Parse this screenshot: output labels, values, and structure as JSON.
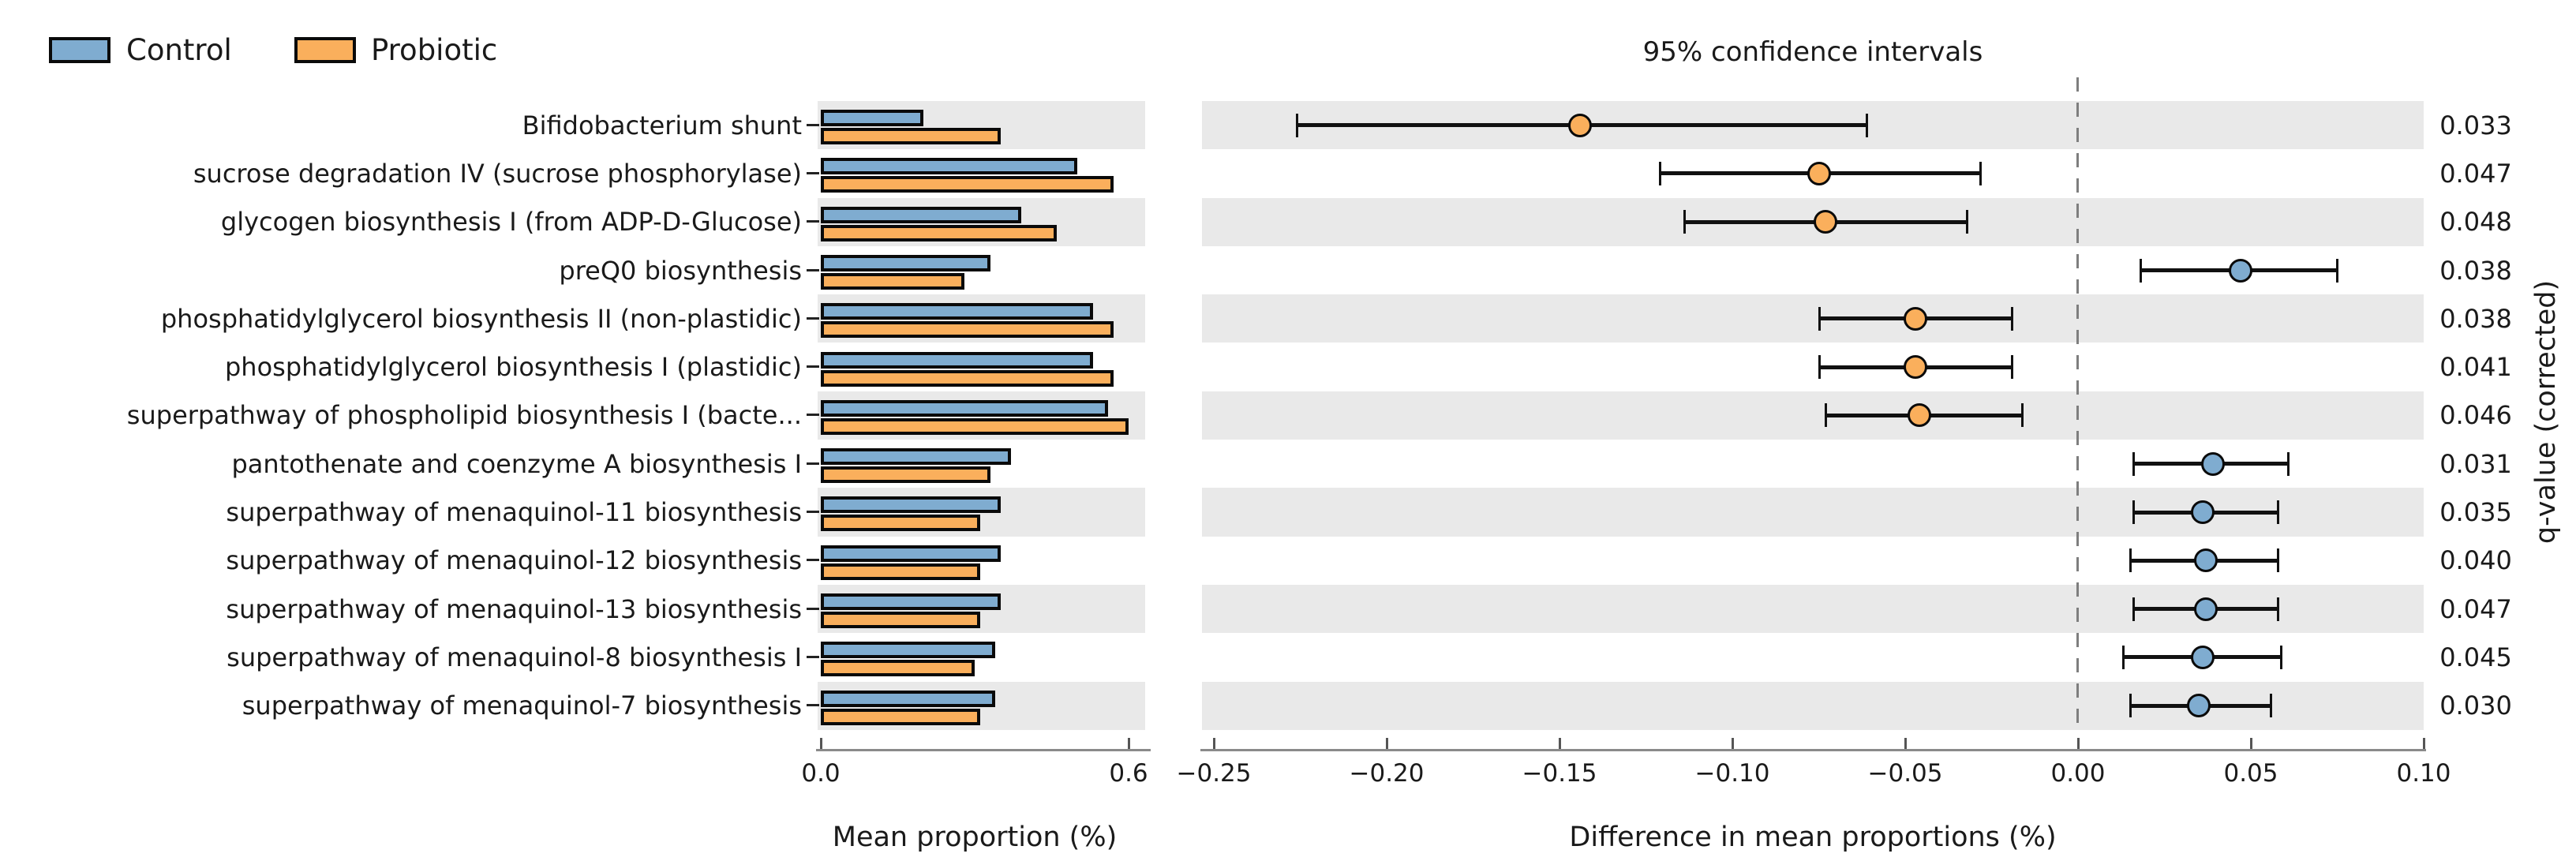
{
  "legend": {
    "items": [
      {
        "label": "Control",
        "color": "#7FACD0"
      },
      {
        "label": "Probiotic",
        "color": "#FAAF5C"
      }
    ]
  },
  "right_panel": {
    "title": "95% confidence intervals"
  },
  "left_axis": {
    "label": "Mean proportion (%)",
    "tick_labels": [
      "0.0",
      "0.6"
    ],
    "tick_values": [
      0,
      0.6
    ]
  },
  "right_axis": {
    "label": "Difference in mean proportions (%)",
    "tick_labels": [
      "−0.25",
      "−0.20",
      "−0.15",
      "−0.10",
      "−0.05",
      "0.00",
      "0.05",
      "0.10"
    ],
    "tick_values": [
      -0.25,
      -0.2,
      -0.15,
      -0.1,
      -0.05,
      0,
      0.05,
      0.1
    ]
  },
  "q_column": {
    "label": "q-value (corrected)"
  },
  "chart_data": {
    "type": "bar",
    "title": "95% confidence intervals",
    "categories": [
      "Bifidobacterium shunt",
      "sucrose degradation IV (sucrose phosphorylase)",
      "glycogen biosynthesis I (from ADP-D-Glucose)",
      "preQ0 biosynthesis",
      "phosphatidylglycerol biosynthesis II (non-plastidic)",
      "phosphatidylglycerol biosynthesis I (plastidic)",
      "superpathway of phospholipid biosynthesis I (bacte...",
      "pantothenate and coenzyme A biosynthesis I",
      "superpathway of menaquinol-11 biosynthesis",
      "superpathway of menaquinol-12 biosynthesis",
      "superpathway of menaquinol-13 biosynthesis",
      "superpathway of menaquinol-8 biosynthesis I",
      "superpathway of menaquinol-7 biosynthesis"
    ],
    "series": [
      {
        "name": "Control",
        "color": "#7FACD0",
        "values": [
          0.2,
          0.5,
          0.39,
          0.33,
          0.53,
          0.53,
          0.56,
          0.37,
          0.35,
          0.35,
          0.35,
          0.34,
          0.34
        ]
      },
      {
        "name": "Probiotic",
        "color": "#FAAF5C",
        "values": [
          0.35,
          0.57,
          0.46,
          0.28,
          0.57,
          0.57,
          0.6,
          0.33,
          0.31,
          0.31,
          0.31,
          0.3,
          0.31
        ]
      }
    ],
    "bar_axis": {
      "label": "Mean proportion (%)",
      "range": [
        0,
        0.6
      ],
      "ticks": [
        0,
        0.6
      ]
    },
    "difference_panel": {
      "label": "Difference in mean proportions (%)",
      "range": [
        -0.255,
        0.1
      ],
      "ticks": [
        -0.25,
        -0.2,
        -0.15,
        -0.1,
        -0.05,
        0,
        0.05,
        0.1
      ],
      "zero_line": 0,
      "points": [
        {
          "mean": -0.144,
          "ci_low": -0.226,
          "ci_high": -0.061,
          "enriched": "Probiotic"
        },
        {
          "mean": -0.075,
          "ci_low": -0.121,
          "ci_high": -0.028,
          "enriched": "Probiotic"
        },
        {
          "mean": -0.073,
          "ci_low": -0.114,
          "ci_high": -0.032,
          "enriched": "Probiotic"
        },
        {
          "mean": 0.047,
          "ci_low": 0.018,
          "ci_high": 0.075,
          "enriched": "Control"
        },
        {
          "mean": -0.047,
          "ci_low": -0.075,
          "ci_high": -0.019,
          "enriched": "Probiotic"
        },
        {
          "mean": -0.047,
          "ci_low": -0.075,
          "ci_high": -0.019,
          "enriched": "Probiotic"
        },
        {
          "mean": -0.046,
          "ci_low": -0.073,
          "ci_high": -0.016,
          "enriched": "Probiotic"
        },
        {
          "mean": 0.039,
          "ci_low": 0.016,
          "ci_high": 0.061,
          "enriched": "Control"
        },
        {
          "mean": 0.036,
          "ci_low": 0.016,
          "ci_high": 0.058,
          "enriched": "Control"
        },
        {
          "mean": 0.037,
          "ci_low": 0.015,
          "ci_high": 0.058,
          "enriched": "Control"
        },
        {
          "mean": 0.037,
          "ci_low": 0.016,
          "ci_high": 0.058,
          "enriched": "Control"
        },
        {
          "mean": 0.036,
          "ci_low": 0.013,
          "ci_high": 0.059,
          "enriched": "Control"
        },
        {
          "mean": 0.035,
          "ci_low": 0.015,
          "ci_high": 0.056,
          "enriched": "Control"
        }
      ]
    },
    "q_values": [
      "0.033",
      "0.047",
      "0.048",
      "0.038",
      "0.038",
      "0.041",
      "0.046",
      "0.031",
      "0.035",
      "0.040",
      "0.047",
      "0.045",
      "0.030"
    ],
    "q_axis_label": "q-value (corrected)",
    "legend_position": "top-left",
    "grid": false
  }
}
